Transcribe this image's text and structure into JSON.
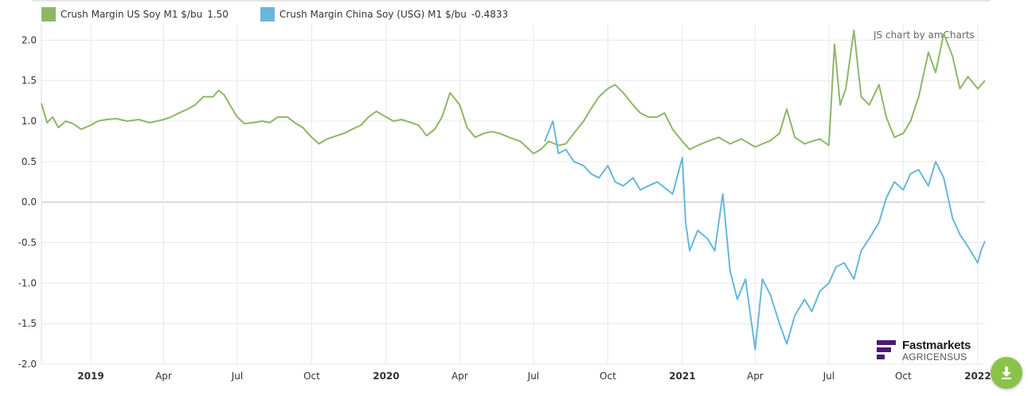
{
  "legend": [
    {
      "label": "Crush Margin US Soy M1 $/bu",
      "value": "1.50",
      "color": "#8cb866"
    },
    {
      "label": "Crush Margin China Soy (USG) M1 $/bu",
      "value": "-0.4833",
      "color": "#67b7dc"
    }
  ],
  "credit": "JS chart by amCharts",
  "logo": {
    "title": "Fastmarkets",
    "subtitle": "AGRICENSUS",
    "color": "#4b1a73"
  },
  "download_icon": "download-arrow-icon",
  "chart_data": {
    "type": "line",
    "grid": true,
    "ylim": [
      -2.0,
      2.2
    ],
    "y_ticks": [
      "2.0",
      "1.5",
      "1.0",
      "0.5",
      "0.0",
      "-0.5",
      "-1.0",
      "-1.5",
      "-2.0"
    ],
    "x_range": [
      "2018-11-01",
      "2022-01-10"
    ],
    "x_ticks": [
      {
        "date": "2019-01-01",
        "label": "2019",
        "bold": true
      },
      {
        "date": "2019-04-01",
        "label": "Apr",
        "bold": false
      },
      {
        "date": "2019-07-01",
        "label": "Jul",
        "bold": false
      },
      {
        "date": "2019-10-01",
        "label": "Oct",
        "bold": false
      },
      {
        "date": "2020-01-01",
        "label": "2020",
        "bold": true
      },
      {
        "date": "2020-04-01",
        "label": "Apr",
        "bold": false
      },
      {
        "date": "2020-07-01",
        "label": "Jul",
        "bold": false
      },
      {
        "date": "2020-10-01",
        "label": "Oct",
        "bold": false
      },
      {
        "date": "2021-01-01",
        "label": "2021",
        "bold": true
      },
      {
        "date": "2021-04-01",
        "label": "Apr",
        "bold": false
      },
      {
        "date": "2021-07-01",
        "label": "Jul",
        "bold": false
      },
      {
        "date": "2021-10-01",
        "label": "Oct",
        "bold": false
      },
      {
        "date": "2022-01-01",
        "label": "2022",
        "bold": true
      }
    ],
    "series": [
      {
        "name": "Crush Margin US Soy M1 $/bu",
        "color": "#8cb866",
        "points": [
          [
            "2018-11-01",
            1.22
          ],
          [
            "2018-11-08",
            0.98
          ],
          [
            "2018-11-15",
            1.05
          ],
          [
            "2018-11-22",
            0.92
          ],
          [
            "2018-12-01",
            1.0
          ],
          [
            "2018-12-10",
            0.97
          ],
          [
            "2018-12-20",
            0.9
          ],
          [
            "2019-01-01",
            0.95
          ],
          [
            "2019-01-10",
            1.0
          ],
          [
            "2019-01-20",
            1.02
          ],
          [
            "2019-02-01",
            1.03
          ],
          [
            "2019-02-15",
            1.0
          ],
          [
            "2019-03-01",
            1.02
          ],
          [
            "2019-03-15",
            0.98
          ],
          [
            "2019-04-01",
            1.02
          ],
          [
            "2019-04-10",
            1.05
          ],
          [
            "2019-04-20",
            1.1
          ],
          [
            "2019-05-01",
            1.15
          ],
          [
            "2019-05-10",
            1.2
          ],
          [
            "2019-05-20",
            1.3
          ],
          [
            "2019-06-01",
            1.3
          ],
          [
            "2019-06-08",
            1.38
          ],
          [
            "2019-06-15",
            1.32
          ],
          [
            "2019-06-22",
            1.2
          ],
          [
            "2019-07-01",
            1.05
          ],
          [
            "2019-07-10",
            0.97
          ],
          [
            "2019-07-20",
            0.98
          ],
          [
            "2019-08-01",
            1.0
          ],
          [
            "2019-08-10",
            0.98
          ],
          [
            "2019-08-20",
            1.05
          ],
          [
            "2019-09-01",
            1.05
          ],
          [
            "2019-09-10",
            0.98
          ],
          [
            "2019-09-20",
            0.92
          ],
          [
            "2019-10-01",
            0.8
          ],
          [
            "2019-10-10",
            0.72
          ],
          [
            "2019-10-20",
            0.78
          ],
          [
            "2019-11-01",
            0.82
          ],
          [
            "2019-11-10",
            0.85
          ],
          [
            "2019-11-20",
            0.9
          ],
          [
            "2019-12-01",
            0.95
          ],
          [
            "2019-12-10",
            1.05
          ],
          [
            "2019-12-20",
            1.12
          ],
          [
            "2020-01-01",
            1.05
          ],
          [
            "2020-01-10",
            1.0
          ],
          [
            "2020-01-20",
            1.02
          ],
          [
            "2020-02-01",
            0.98
          ],
          [
            "2020-02-10",
            0.95
          ],
          [
            "2020-02-20",
            0.82
          ],
          [
            "2020-03-01",
            0.9
          ],
          [
            "2020-03-10",
            1.05
          ],
          [
            "2020-03-20",
            1.35
          ],
          [
            "2020-04-01",
            1.2
          ],
          [
            "2020-04-10",
            0.92
          ],
          [
            "2020-04-20",
            0.8
          ],
          [
            "2020-05-01",
            0.85
          ],
          [
            "2020-05-10",
            0.87
          ],
          [
            "2020-05-20",
            0.85
          ],
          [
            "2020-06-01",
            0.8
          ],
          [
            "2020-06-15",
            0.75
          ],
          [
            "2020-07-01",
            0.6
          ],
          [
            "2020-07-10",
            0.65
          ],
          [
            "2020-07-20",
            0.75
          ],
          [
            "2020-08-01",
            0.7
          ],
          [
            "2020-08-10",
            0.72
          ],
          [
            "2020-08-20",
            0.85
          ],
          [
            "2020-09-01",
            1.0
          ],
          [
            "2020-09-10",
            1.15
          ],
          [
            "2020-09-20",
            1.3
          ],
          [
            "2020-10-01",
            1.4
          ],
          [
            "2020-10-10",
            1.45
          ],
          [
            "2020-10-20",
            1.35
          ],
          [
            "2020-11-01",
            1.2
          ],
          [
            "2020-11-10",
            1.1
          ],
          [
            "2020-11-20",
            1.05
          ],
          [
            "2020-12-01",
            1.05
          ],
          [
            "2020-12-10",
            1.1
          ],
          [
            "2020-12-20",
            0.9
          ],
          [
            "2021-01-01",
            0.75
          ],
          [
            "2021-01-10",
            0.65
          ],
          [
            "2021-01-20",
            0.7
          ],
          [
            "2021-02-01",
            0.75
          ],
          [
            "2021-02-15",
            0.8
          ],
          [
            "2021-03-01",
            0.72
          ],
          [
            "2021-03-15",
            0.78
          ],
          [
            "2021-04-01",
            0.68
          ],
          [
            "2021-04-10",
            0.72
          ],
          [
            "2021-04-20",
            0.76
          ],
          [
            "2021-05-01",
            0.85
          ],
          [
            "2021-05-10",
            1.15
          ],
          [
            "2021-05-20",
            0.8
          ],
          [
            "2021-06-01",
            0.72
          ],
          [
            "2021-06-10",
            0.75
          ],
          [
            "2021-06-20",
            0.78
          ],
          [
            "2021-07-01",
            0.7
          ],
          [
            "2021-07-08",
            1.95
          ],
          [
            "2021-07-15",
            1.2
          ],
          [
            "2021-07-22",
            1.4
          ],
          [
            "2021-08-01",
            2.12
          ],
          [
            "2021-08-10",
            1.3
          ],
          [
            "2021-08-20",
            1.2
          ],
          [
            "2021-09-01",
            1.45
          ],
          [
            "2021-09-10",
            1.05
          ],
          [
            "2021-09-20",
            0.8
          ],
          [
            "2021-10-01",
            0.85
          ],
          [
            "2021-10-10",
            1.0
          ],
          [
            "2021-10-20",
            1.3
          ],
          [
            "2021-11-01",
            1.85
          ],
          [
            "2021-11-10",
            1.6
          ],
          [
            "2021-11-20",
            2.08
          ],
          [
            "2021-12-01",
            1.8
          ],
          [
            "2021-12-10",
            1.4
          ],
          [
            "2021-12-20",
            1.55
          ],
          [
            "2022-01-01",
            1.4
          ],
          [
            "2022-01-10",
            1.5
          ]
        ]
      },
      {
        "name": "Crush Margin China Soy (USG) M1 $/bu",
        "color": "#67b7dc",
        "points": [
          [
            "2020-07-15",
            0.75
          ],
          [
            "2020-07-25",
            1.0
          ],
          [
            "2020-08-01",
            0.6
          ],
          [
            "2020-08-10",
            0.65
          ],
          [
            "2020-08-20",
            0.5
          ],
          [
            "2020-09-01",
            0.45
          ],
          [
            "2020-09-10",
            0.35
          ],
          [
            "2020-09-20",
            0.3
          ],
          [
            "2020-10-01",
            0.45
          ],
          [
            "2020-10-10",
            0.25
          ],
          [
            "2020-10-20",
            0.2
          ],
          [
            "2020-11-01",
            0.3
          ],
          [
            "2020-11-10",
            0.15
          ],
          [
            "2020-11-20",
            0.2
          ],
          [
            "2020-12-01",
            0.25
          ],
          [
            "2020-12-10",
            0.18
          ],
          [
            "2020-12-20",
            0.1
          ],
          [
            "2021-01-01",
            0.55
          ],
          [
            "2021-01-05",
            -0.25
          ],
          [
            "2021-01-10",
            -0.6
          ],
          [
            "2021-01-20",
            -0.35
          ],
          [
            "2021-02-01",
            -0.45
          ],
          [
            "2021-02-10",
            -0.6
          ],
          [
            "2021-02-20",
            0.1
          ],
          [
            "2021-03-01",
            -0.85
          ],
          [
            "2021-03-10",
            -1.2
          ],
          [
            "2021-03-20",
            -0.95
          ],
          [
            "2021-04-01",
            -1.82
          ],
          [
            "2021-04-10",
            -0.95
          ],
          [
            "2021-04-20",
            -1.15
          ],
          [
            "2021-05-01",
            -1.5
          ],
          [
            "2021-05-10",
            -1.75
          ],
          [
            "2021-05-20",
            -1.4
          ],
          [
            "2021-06-01",
            -1.2
          ],
          [
            "2021-06-10",
            -1.35
          ],
          [
            "2021-06-20",
            -1.1
          ],
          [
            "2021-07-01",
            -1.0
          ],
          [
            "2021-07-10",
            -0.8
          ],
          [
            "2021-07-20",
            -0.75
          ],
          [
            "2021-08-01",
            -0.95
          ],
          [
            "2021-08-10",
            -0.6
          ],
          [
            "2021-08-20",
            -0.45
          ],
          [
            "2021-09-01",
            -0.25
          ],
          [
            "2021-09-10",
            0.05
          ],
          [
            "2021-09-20",
            0.25
          ],
          [
            "2021-10-01",
            0.15
          ],
          [
            "2021-10-10",
            0.35
          ],
          [
            "2021-10-20",
            0.4
          ],
          [
            "2021-11-01",
            0.2
          ],
          [
            "2021-11-10",
            0.5
          ],
          [
            "2021-11-20",
            0.3
          ],
          [
            "2021-12-01",
            -0.2
          ],
          [
            "2021-12-10",
            -0.4
          ],
          [
            "2021-12-20",
            -0.55
          ],
          [
            "2022-01-01",
            -0.75
          ],
          [
            "2022-01-05",
            -0.6
          ],
          [
            "2022-01-10",
            -0.48
          ]
        ]
      }
    ]
  }
}
